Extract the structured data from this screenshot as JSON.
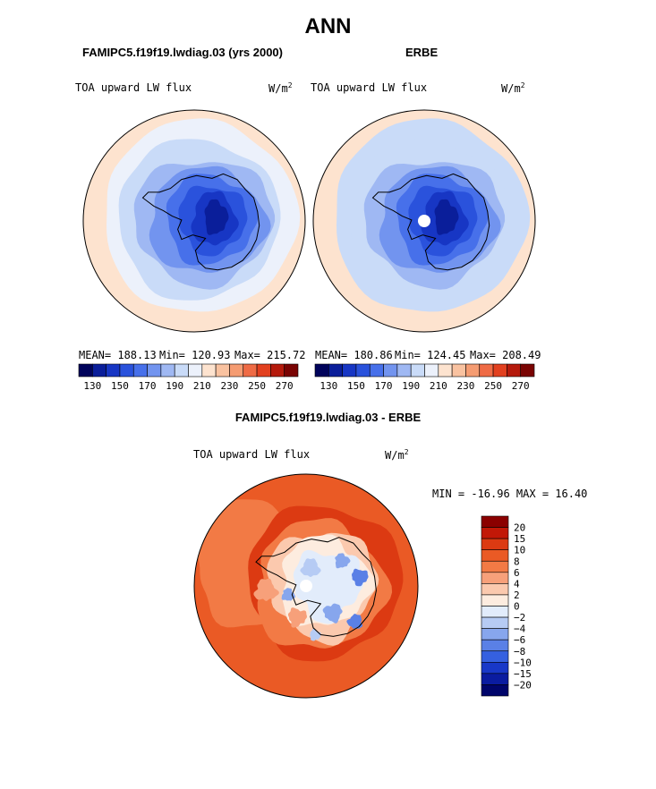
{
  "page": {
    "season": "ANN",
    "model_title": "FAMIPC5.f19f19.lwdiag.03 (yrs 2000)",
    "obs_title": "ERBE",
    "diff_title": "FAMIPC5.f19f19.lwdiag.03 - ERBE"
  },
  "chart_data": [
    {
      "type": "heatmap",
      "panel": "model",
      "title": "FAMIPC5.f19f19.lwdiag.03 (yrs 2000)",
      "variable": "TOA upward LW flux",
      "units": "W/m",
      "units_exp": "2",
      "projection": "south polar stereographic",
      "stats": {
        "mean": "MEAN= 188.13",
        "min": "Min= 120.93",
        "max": "Max= 215.72"
      },
      "colorbar": {
        "orientation": "horizontal",
        "levels": [
          130,
          140,
          150,
          160,
          170,
          180,
          190,
          200,
          210,
          220,
          230,
          240,
          250,
          260,
          270
        ],
        "tick_labels": [
          "130",
          "150",
          "170",
          "190",
          "210",
          "230",
          "250",
          "270"
        ],
        "colors": [
          "#00035b",
          "#0a1e9a",
          "#1736c4",
          "#2a52dc",
          "#4770ea",
          "#7294ef",
          "#9fb8f3",
          "#c9dbf8",
          "#ecf1fb",
          "#fde3cf",
          "#f9c2a0",
          "#f59c72",
          "#ef6b45",
          "#e2401f",
          "#b51a0c",
          "#7a0403"
        ]
      }
    },
    {
      "type": "heatmap",
      "panel": "observations",
      "title": "ERBE",
      "variable": "TOA upward LW flux",
      "units": "W/m",
      "units_exp": "2",
      "projection": "south polar stereographic",
      "stats": {
        "mean": "MEAN= 180.86",
        "min": "Min= 124.45",
        "max": "Max= 208.49"
      },
      "colorbar": {
        "orientation": "horizontal",
        "levels": [
          130,
          140,
          150,
          160,
          170,
          180,
          190,
          200,
          210,
          220,
          230,
          240,
          250,
          260,
          270
        ],
        "tick_labels": [
          "130",
          "150",
          "170",
          "190",
          "210",
          "230",
          "250",
          "270"
        ],
        "colors": [
          "#00035b",
          "#0a1e9a",
          "#1736c4",
          "#2a52dc",
          "#4770ea",
          "#7294ef",
          "#9fb8f3",
          "#c9dbf8",
          "#ecf1fb",
          "#fde3cf",
          "#f9c2a0",
          "#f59c72",
          "#ef6b45",
          "#e2401f",
          "#b51a0c",
          "#7a0403"
        ]
      }
    },
    {
      "type": "heatmap",
      "panel": "difference",
      "title": "FAMIPC5.f19f19.lwdiag.03 - ERBE",
      "variable": "TOA upward LW flux",
      "units": "W/m",
      "units_exp": "2",
      "projection": "south polar stereographic",
      "stats": {
        "minmax": "MIN = -16.96 MAX =  16.40"
      },
      "colorbar": {
        "orientation": "vertical",
        "tick_labels": [
          "20",
          "15",
          "10",
          "8",
          "6",
          "4",
          "2",
          "0",
          "−2",
          "−4",
          "−6",
          "−8",
          "−10",
          "−15",
          "−20"
        ],
        "colors": [
          "#8b0000",
          "#c21807",
          "#dc3a12",
          "#ea5a25",
          "#f27a45",
          "#f7a07a",
          "#fbc9ae",
          "#fdecdf",
          "#e2ecfb",
          "#b6cbf4",
          "#87a6ed",
          "#5a80e6",
          "#3560e0",
          "#1838c8",
          "#0a1ca0",
          "#00056b"
        ]
      }
    }
  ]
}
